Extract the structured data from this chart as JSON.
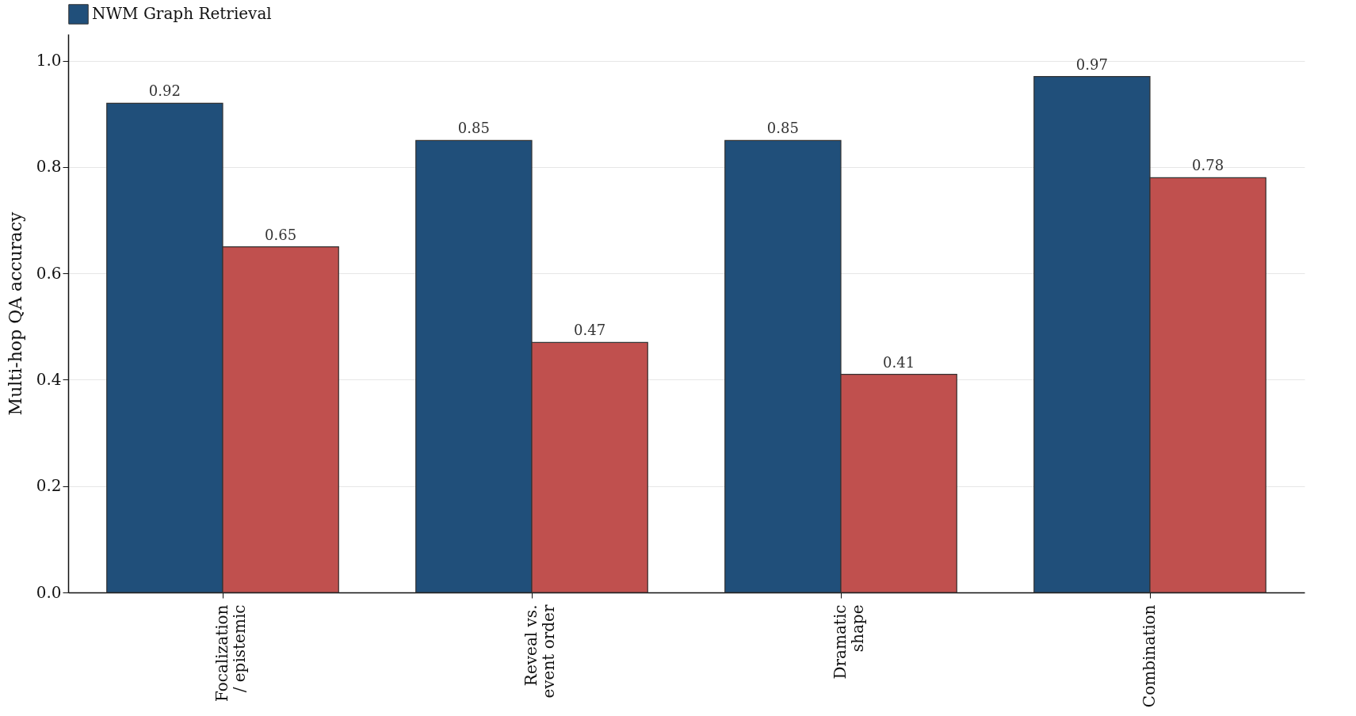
{
  "chart_data": {
    "type": "bar",
    "ylabel": "Multi-hop QA accuracy",
    "categories": [
      "Focalization / epistemic",
      "Reveal vs. event order",
      "Dramatic shape",
      "Combination"
    ],
    "series": [
      {
        "name": "NWM Graph Retrieval",
        "color": "#204f7a",
        "values": [
          0.92,
          0.85,
          0.85,
          0.97
        ]
      },
      {
        "color": "#c0504e",
        "values": [
          0.65,
          0.47,
          0.41,
          0.78
        ]
      }
    ],
    "ylim": [
      0,
      1.05
    ],
    "yticks": [
      {
        "value": 0,
        "label": "0.0"
      },
      0.2,
      0.4,
      0.6,
      0.8,
      {
        "value": 1,
        "label": "1.0"
      }
    ],
    "grid": "y",
    "legend": "top",
    "data_labels": true
  }
}
